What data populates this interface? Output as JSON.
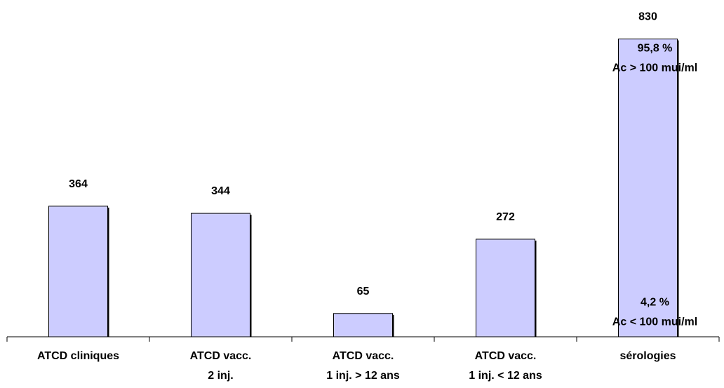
{
  "chart_data": {
    "type": "bar",
    "categories": [
      [
        "ATCD cliniques"
      ],
      [
        "ATCD vacc.",
        "2 inj."
      ],
      [
        "ATCD vacc.",
        "1 inj. > 12 ans"
      ],
      [
        "ATCD vacc.",
        "1 inj. < 12 ans"
      ],
      [
        "sérologies"
      ]
    ],
    "values": [
      364,
      344,
      65,
      272,
      830
    ],
    "data_labels": [
      "364",
      "344",
      "65",
      "272",
      "830"
    ],
    "ylim": [
      0,
      880
    ],
    "grid": false,
    "legend": "none",
    "colors": {
      "bar_fill": "#ccccff",
      "bar_edge": "#000000",
      "axis": "#000000"
    },
    "annotations": [
      {
        "bar": 4,
        "lines": [
          "95,8 %",
          "Ac > 100 mui/ml"
        ],
        "value": 795
      },
      {
        "bar": 4,
        "lines": [
          "4,2 %",
          "Ac < 100 mui/ml"
        ],
        "value": 87
      }
    ]
  }
}
